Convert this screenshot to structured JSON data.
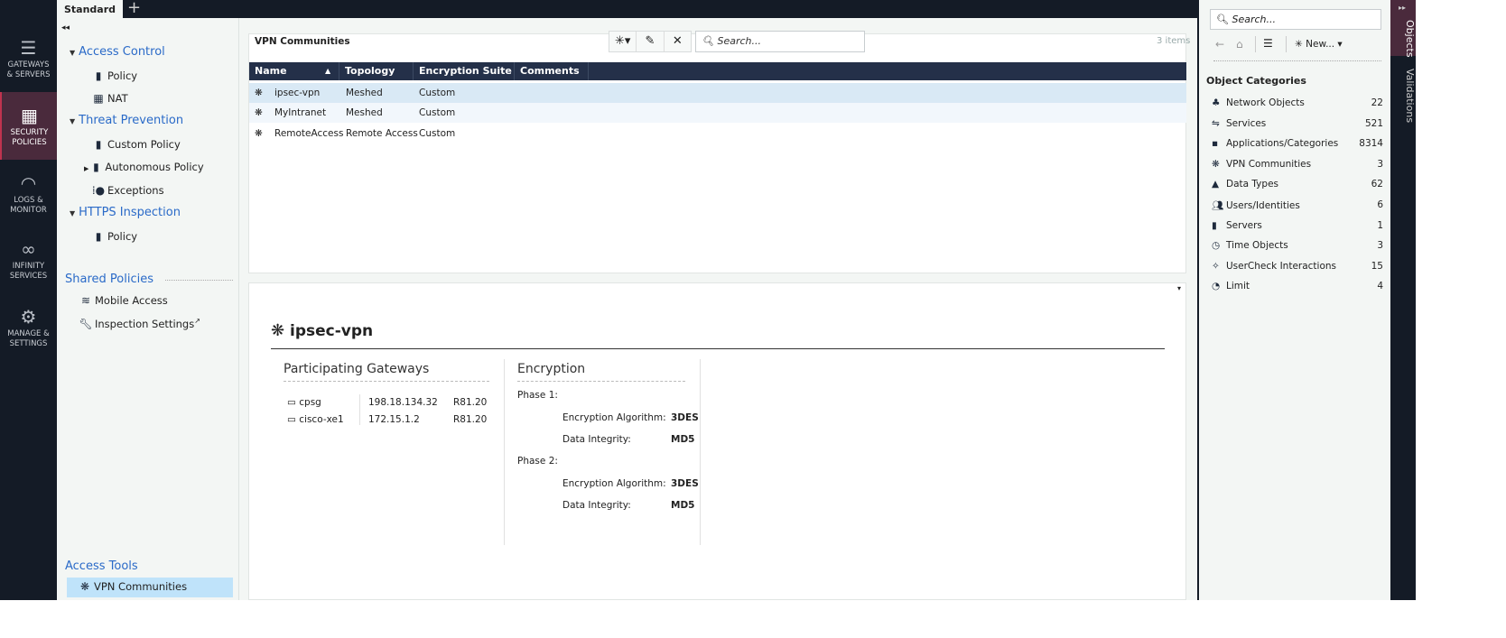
{
  "nav": [
    {
      "label1": "GATEWAYS",
      "label2": "& SERVERS",
      "icon": "server-icon"
    },
    {
      "label1": "SECURITY",
      "label2": "POLICIES",
      "icon": "policies-icon",
      "selected": true
    },
    {
      "label1": "LOGS &",
      "label2": "MONITOR",
      "icon": "gauge-icon"
    },
    {
      "label1": "INFINITY",
      "label2": "SERVICES",
      "icon": "infinity-icon"
    },
    {
      "label1": "MANAGE &",
      "label2": "SETTINGS",
      "icon": "gear-icon"
    }
  ],
  "tabs": {
    "active": "Standard"
  },
  "tree": {
    "access_control": "Access Control",
    "ac_policy": "Policy",
    "ac_nat": "NAT",
    "threat_prevention": "Threat Prevention",
    "tp_custom": "Custom Policy",
    "tp_autonomous": "Autonomous Policy",
    "tp_exceptions": "Exceptions",
    "https_inspection": "HTTPS Inspection",
    "https_policy": "Policy",
    "shared_policies": "Shared Policies",
    "mobile_access": "Mobile Access",
    "inspection_settings": "Inspection Settings",
    "access_tools": "Access Tools",
    "vpn_communities": "VPN Communities"
  },
  "main": {
    "title": "VPN Communities",
    "search_placeholder": "Search...",
    "items": "3 items",
    "columns": [
      "Name",
      "Topology",
      "Encryption Suite",
      "Comments"
    ],
    "rows": [
      {
        "name": "ipsec-vpn",
        "topology": "Meshed",
        "suite": "Custom",
        "comments": ""
      },
      {
        "name": "MyIntranet",
        "topology": "Meshed",
        "suite": "Custom",
        "comments": ""
      },
      {
        "name": "RemoteAccess",
        "topology": "Remote Access",
        "suite": "Custom",
        "comments": ""
      }
    ]
  },
  "details": {
    "title": "ipsec-vpn",
    "gateways_title": "Participating Gateways",
    "gateways": [
      {
        "name": "cpsg",
        "ip": "198.18.134.32",
        "version": "R81.20"
      },
      {
        "name": "cisco-xe1",
        "ip": "172.15.1.2",
        "version": "R81.20"
      }
    ],
    "encryption_title": "Encryption",
    "phase1": "Phase 1:",
    "phase2": "Phase 2:",
    "enc_alg_label": "Encryption Algorithm:",
    "integrity_label": "Data Integrity:",
    "p1_alg": "3DES",
    "p1_int": "MD5",
    "p2_alg": "3DES",
    "p2_int": "MD5"
  },
  "objects": {
    "search_placeholder": "Search...",
    "new_label": "New...",
    "categories_title": "Object Categories",
    "categories": [
      {
        "label": "Network Objects",
        "count": "22"
      },
      {
        "label": "Services",
        "count": "521"
      },
      {
        "label": "Applications/Categories",
        "count": "8314"
      },
      {
        "label": "VPN Communities",
        "count": "3"
      },
      {
        "label": "Data Types",
        "count": "62"
      },
      {
        "label": "Users/Identities",
        "count": "6"
      },
      {
        "label": "Servers",
        "count": "1"
      },
      {
        "label": "Time Objects",
        "count": "3"
      },
      {
        "label": "UserCheck Interactions",
        "count": "15"
      },
      {
        "label": "Limit",
        "count": "4"
      }
    ]
  },
  "vtabs": {
    "objects": "Objects",
    "validations": "Validations"
  },
  "colors": {
    "nav_bg": "#141b26",
    "selected_nav": "#4a2a3c",
    "header_bg": "#243049",
    "link_blue": "#2a6ac8",
    "selected_row": "#d9e9f5"
  }
}
